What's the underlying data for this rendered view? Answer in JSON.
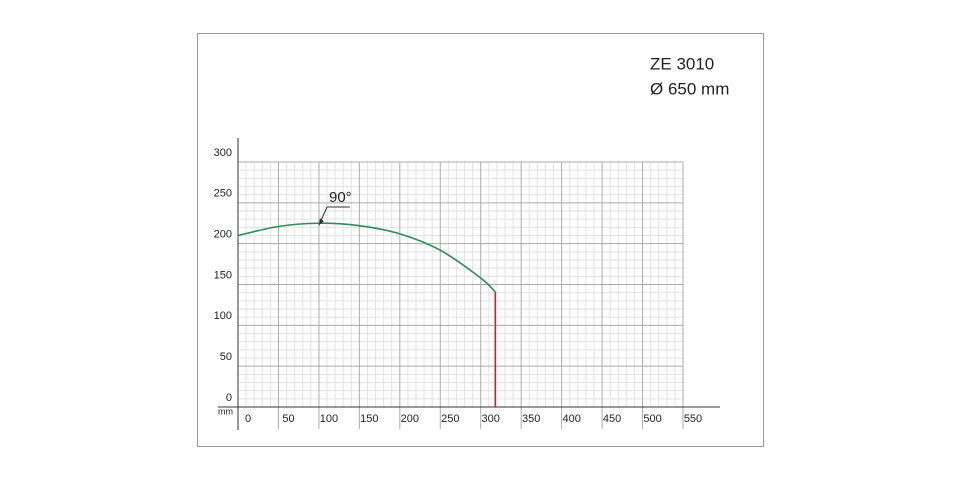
{
  "chart_data": {
    "type": "line",
    "title": "ZE 3010",
    "subtitle": "Ø 650 mm",
    "xlabel": "mm",
    "xlim": [
      0,
      550
    ],
    "ylim": [
      0,
      300
    ],
    "xticks": [
      0,
      50,
      100,
      150,
      200,
      250,
      300,
      350,
      400,
      450,
      500,
      550
    ],
    "yticks": [
      0,
      50,
      100,
      150,
      200,
      250,
      300
    ],
    "grid": true,
    "series": [
      {
        "color": "#2e8b57",
        "x": [
          0,
          50,
          100,
          150,
          200,
          250,
          300,
          318
        ],
        "values": [
          210,
          221,
          225,
          222,
          212,
          192,
          158,
          141
        ]
      },
      {
        "color": "#b03030",
        "x": [
          318,
          318
        ],
        "values": [
          141,
          0
        ]
      }
    ],
    "annotation": {
      "text": "90°",
      "x": 100,
      "y": 225
    }
  }
}
